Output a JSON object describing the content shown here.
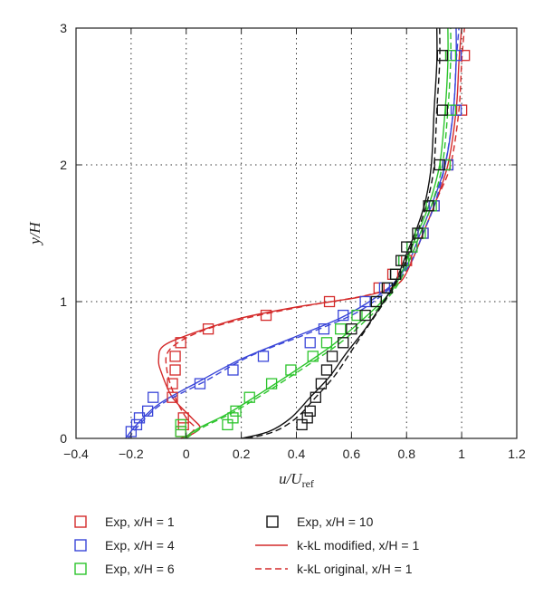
{
  "chart_data": {
    "type": "scatter",
    "title": "",
    "xlabel": {
      "main": "u/U",
      "sub": "ref"
    },
    "ylabel": "y/H",
    "xlim": [
      -0.4,
      1.2
    ],
    "ylim": [
      0,
      3
    ],
    "xticks": [
      "−0.4",
      "−0.2",
      "0",
      "0.2",
      "0.4",
      "0.6",
      "0.8",
      "1",
      "1.2"
    ],
    "yticks": [
      "0",
      "1",
      "2",
      "3"
    ],
    "grid": true,
    "legend_position": "bottom",
    "colors": {
      "red": "#d42a2a",
      "blue": "#3a46d8",
      "green": "#2cc42c",
      "black": "#111111"
    },
    "series": [
      {
        "name": "Exp, x/H = 1",
        "kind": "marker",
        "color": "red",
        "points": [
          [
            -0.02,
            0.05
          ],
          [
            -0.01,
            0.1
          ],
          [
            -0.01,
            0.15
          ],
          [
            -0.05,
            0.3
          ],
          [
            -0.05,
            0.4
          ],
          [
            -0.04,
            0.5
          ],
          [
            -0.04,
            0.6
          ],
          [
            -0.02,
            0.7
          ],
          [
            0.08,
            0.8
          ],
          [
            0.29,
            0.9
          ],
          [
            0.52,
            1.0
          ],
          [
            0.7,
            1.1
          ],
          [
            0.75,
            1.2
          ],
          [
            0.8,
            1.3
          ],
          [
            0.82,
            1.4
          ],
          [
            0.86,
            1.5
          ],
          [
            0.9,
            1.7
          ],
          [
            0.95,
            2.0
          ],
          [
            1.0,
            2.4
          ],
          [
            1.01,
            2.8
          ]
        ]
      },
      {
        "name": "Exp, x/H = 4",
        "kind": "marker",
        "color": "blue",
        "points": [
          [
            -0.2,
            0.05
          ],
          [
            -0.18,
            0.1
          ],
          [
            -0.17,
            0.15
          ],
          [
            -0.14,
            0.2
          ],
          [
            -0.12,
            0.3
          ],
          [
            0.05,
            0.4
          ],
          [
            0.17,
            0.5
          ],
          [
            0.28,
            0.6
          ],
          [
            0.45,
            0.7
          ],
          [
            0.5,
            0.8
          ],
          [
            0.57,
            0.9
          ],
          [
            0.65,
            1.0
          ],
          [
            0.72,
            1.1
          ],
          [
            0.76,
            1.2
          ],
          [
            0.79,
            1.3
          ],
          [
            0.82,
            1.4
          ],
          [
            0.86,
            1.5
          ],
          [
            0.9,
            1.7
          ],
          [
            0.95,
            2.0
          ],
          [
            0.98,
            2.4
          ],
          [
            0.98,
            2.8
          ]
        ]
      },
      {
        "name": "Exp, x/H = 6",
        "kind": "marker",
        "color": "green",
        "points": [
          [
            -0.02,
            0.05
          ],
          [
            -0.02,
            0.1
          ],
          [
            0.15,
            0.1
          ],
          [
            0.17,
            0.15
          ],
          [
            0.18,
            0.2
          ],
          [
            0.23,
            0.3
          ],
          [
            0.31,
            0.4
          ],
          [
            0.38,
            0.5
          ],
          [
            0.46,
            0.6
          ],
          [
            0.51,
            0.7
          ],
          [
            0.56,
            0.8
          ],
          [
            0.62,
            0.9
          ],
          [
            0.69,
            1.0
          ],
          [
            0.73,
            1.1
          ],
          [
            0.76,
            1.2
          ],
          [
            0.79,
            1.3
          ],
          [
            0.82,
            1.4
          ],
          [
            0.85,
            1.5
          ],
          [
            0.89,
            1.7
          ],
          [
            0.94,
            2.0
          ],
          [
            0.96,
            2.4
          ],
          [
            0.96,
            2.8
          ]
        ]
      },
      {
        "name": "Exp, x/H = 10",
        "kind": "marker",
        "color": "black",
        "points": [
          [
            0.42,
            0.1
          ],
          [
            0.44,
            0.15
          ],
          [
            0.45,
            0.2
          ],
          [
            0.47,
            0.3
          ],
          [
            0.49,
            0.4
          ],
          [
            0.51,
            0.5
          ],
          [
            0.53,
            0.6
          ],
          [
            0.57,
            0.7
          ],
          [
            0.6,
            0.8
          ],
          [
            0.65,
            0.9
          ],
          [
            0.69,
            1.0
          ],
          [
            0.73,
            1.1
          ],
          [
            0.76,
            1.2
          ],
          [
            0.78,
            1.3
          ],
          [
            0.8,
            1.4
          ],
          [
            0.84,
            1.5
          ],
          [
            0.88,
            1.7
          ],
          [
            0.92,
            2.0
          ],
          [
            0.93,
            2.4
          ],
          [
            0.93,
            2.8
          ]
        ]
      },
      {
        "name": "k-kL modified, x/H = 1",
        "kind": "line",
        "color": "red",
        "dash": false,
        "points": [
          [
            -0.02,
            0
          ],
          [
            0.02,
            0.03
          ],
          [
            0.05,
            0.08
          ],
          [
            0.02,
            0.15
          ],
          [
            -0.05,
            0.3
          ],
          [
            -0.09,
            0.48
          ],
          [
            -0.1,
            0.58
          ],
          [
            -0.08,
            0.68
          ],
          [
            0.04,
            0.78
          ],
          [
            0.2,
            0.88
          ],
          [
            0.4,
            0.96
          ],
          [
            0.62,
            1.03
          ],
          [
            0.72,
            1.08
          ],
          [
            0.78,
            1.15
          ],
          [
            0.82,
            1.3
          ],
          [
            0.86,
            1.5
          ],
          [
            0.9,
            1.7
          ],
          [
            0.95,
            2.0
          ],
          [
            0.98,
            2.4
          ],
          [
            0.99,
            2.75
          ],
          [
            1.0,
            3
          ]
        ]
      },
      {
        "name": "k-kL original, x/H = 1",
        "kind": "line",
        "color": "red",
        "dash": true,
        "points": [
          [
            -0.02,
            0
          ],
          [
            0.01,
            0.03
          ],
          [
            0.03,
            0.08
          ],
          [
            0.0,
            0.15
          ],
          [
            -0.04,
            0.3
          ],
          [
            -0.07,
            0.5
          ],
          [
            -0.06,
            0.65
          ],
          [
            0.05,
            0.78
          ],
          [
            0.22,
            0.88
          ],
          [
            0.44,
            0.97
          ],
          [
            0.64,
            1.04
          ],
          [
            0.74,
            1.1
          ],
          [
            0.79,
            1.2
          ],
          [
            0.83,
            1.35
          ],
          [
            0.87,
            1.55
          ],
          [
            0.91,
            1.75
          ],
          [
            0.96,
            2.0
          ],
          [
            0.99,
            2.4
          ],
          [
            1.0,
            2.75
          ],
          [
            1.01,
            3
          ]
        ]
      },
      {
        "name": "",
        "kind": "line",
        "color": "blue",
        "dash": false,
        "points": [
          [
            -0.22,
            0
          ],
          [
            -0.18,
            0.1
          ],
          [
            -0.1,
            0.25
          ],
          [
            0.05,
            0.42
          ],
          [
            0.2,
            0.58
          ],
          [
            0.38,
            0.73
          ],
          [
            0.56,
            0.88
          ],
          [
            0.68,
            1.02
          ],
          [
            0.76,
            1.15
          ],
          [
            0.81,
            1.3
          ],
          [
            0.85,
            1.5
          ],
          [
            0.89,
            1.7
          ],
          [
            0.94,
            2.0
          ],
          [
            0.97,
            2.4
          ],
          [
            0.98,
            2.75
          ],
          [
            0.98,
            3
          ]
        ]
      },
      {
        "name": "",
        "kind": "line",
        "color": "blue",
        "dash": true,
        "points": [
          [
            -0.21,
            0
          ],
          [
            -0.17,
            0.1
          ],
          [
            -0.09,
            0.25
          ],
          [
            0.07,
            0.42
          ],
          [
            0.23,
            0.6
          ],
          [
            0.42,
            0.75
          ],
          [
            0.6,
            0.9
          ],
          [
            0.7,
            1.03
          ],
          [
            0.77,
            1.16
          ],
          [
            0.82,
            1.3
          ],
          [
            0.86,
            1.5
          ],
          [
            0.9,
            1.7
          ],
          [
            0.94,
            2.0
          ],
          [
            0.97,
            2.4
          ],
          [
            0.98,
            2.75
          ],
          [
            0.99,
            3
          ]
        ]
      },
      {
        "name": "",
        "kind": "line",
        "color": "green",
        "dash": false,
        "points": [
          [
            -0.01,
            0
          ],
          [
            0.05,
            0.08
          ],
          [
            0.15,
            0.18
          ],
          [
            0.27,
            0.33
          ],
          [
            0.4,
            0.5
          ],
          [
            0.53,
            0.68
          ],
          [
            0.63,
            0.85
          ],
          [
            0.71,
            1.0
          ],
          [
            0.76,
            1.12
          ],
          [
            0.8,
            1.3
          ],
          [
            0.84,
            1.5
          ],
          [
            0.88,
            1.7
          ],
          [
            0.92,
            2.0
          ],
          [
            0.94,
            2.4
          ],
          [
            0.95,
            2.75
          ],
          [
            0.95,
            3
          ]
        ]
      },
      {
        "name": "",
        "kind": "line",
        "color": "green",
        "dash": true,
        "points": [
          [
            0.0,
            0
          ],
          [
            0.06,
            0.08
          ],
          [
            0.17,
            0.19
          ],
          [
            0.3,
            0.35
          ],
          [
            0.43,
            0.52
          ],
          [
            0.56,
            0.7
          ],
          [
            0.65,
            0.86
          ],
          [
            0.72,
            1.0
          ],
          [
            0.77,
            1.13
          ],
          [
            0.81,
            1.3
          ],
          [
            0.85,
            1.5
          ],
          [
            0.89,
            1.7
          ],
          [
            0.93,
            2.0
          ],
          [
            0.95,
            2.4
          ],
          [
            0.96,
            2.75
          ],
          [
            0.96,
            3
          ]
        ]
      },
      {
        "name": "",
        "kind": "line",
        "color": "black",
        "dash": false,
        "points": [
          [
            0.2,
            0
          ],
          [
            0.3,
            0.05
          ],
          [
            0.38,
            0.15
          ],
          [
            0.45,
            0.3
          ],
          [
            0.52,
            0.45
          ],
          [
            0.58,
            0.62
          ],
          [
            0.65,
            0.8
          ],
          [
            0.71,
            0.98
          ],
          [
            0.76,
            1.15
          ],
          [
            0.8,
            1.35
          ],
          [
            0.84,
            1.55
          ],
          [
            0.87,
            1.75
          ],
          [
            0.89,
            2.0
          ],
          [
            0.9,
            2.4
          ],
          [
            0.91,
            2.75
          ],
          [
            0.91,
            3
          ]
        ]
      },
      {
        "name": "",
        "kind": "line",
        "color": "black",
        "dash": true,
        "points": [
          [
            0.22,
            0
          ],
          [
            0.32,
            0.05
          ],
          [
            0.4,
            0.15
          ],
          [
            0.47,
            0.3
          ],
          [
            0.54,
            0.46
          ],
          [
            0.6,
            0.64
          ],
          [
            0.66,
            0.82
          ],
          [
            0.72,
            1.0
          ],
          [
            0.77,
            1.17
          ],
          [
            0.81,
            1.37
          ],
          [
            0.85,
            1.57
          ],
          [
            0.88,
            1.77
          ],
          [
            0.9,
            2.0
          ],
          [
            0.91,
            2.4
          ],
          [
            0.92,
            2.75
          ],
          [
            0.92,
            3
          ]
        ]
      }
    ],
    "legend": [
      {
        "label": "Exp, x/H = 1",
        "kind": "marker",
        "color": "red"
      },
      {
        "label": "Exp, x/H = 10",
        "kind": "marker",
        "color": "black"
      },
      {
        "label": "Exp, x/H = 4",
        "kind": "marker",
        "color": "blue"
      },
      {
        "label": "k-kL modified, x/H = 1",
        "kind": "line",
        "color": "red",
        "dash": false
      },
      {
        "label": "Exp, x/H = 6",
        "kind": "marker",
        "color": "green"
      },
      {
        "label": "k-kL original, x/H = 1",
        "kind": "line",
        "color": "red",
        "dash": true
      }
    ]
  }
}
